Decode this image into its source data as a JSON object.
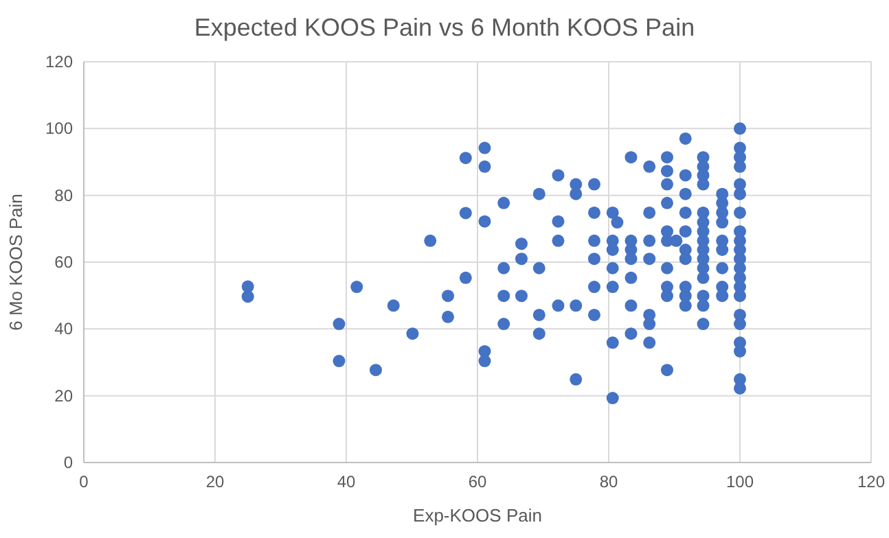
{
  "chart_data": {
    "type": "scatter",
    "title": "Expected KOOS Pain vs 6 Month KOOS Pain",
    "xlabel": "Exp-KOOS Pain",
    "ylabel": "6 Mo KOOS Pain",
    "xlim": [
      0,
      120
    ],
    "xticks": [
      0,
      20,
      40,
      60,
      80,
      100,
      120
    ],
    "ylim": [
      0,
      120
    ],
    "yticks": [
      0,
      20,
      40,
      60,
      80,
      100,
      120
    ],
    "grid": true,
    "marker": "circle",
    "series": [
      {
        "color": "#4472c4",
        "x": [
          25,
          25,
          38.9,
          38.9,
          41.6,
          44.5,
          47.2,
          50.1,
          52.8,
          55.5,
          55.5,
          58.2,
          58.2,
          58.2,
          61.1,
          61.1,
          61.1,
          61.1,
          61.1,
          64,
          64,
          64,
          64,
          66.7,
          66.7,
          66.7,
          69.4,
          69.4,
          69.4,
          69.4,
          72.3,
          72.3,
          72.3,
          72.3,
          75,
          75,
          75,
          75,
          77.8,
          77.8,
          77.8,
          77.8,
          77.8,
          77.8,
          80.6,
          80.6,
          80.6,
          80.6,
          80.6,
          80.6,
          80.6,
          81.3,
          83.4,
          83.4,
          83.4,
          83.4,
          83.4,
          83.4,
          83.4,
          86.2,
          86.2,
          86.2,
          86.2,
          86.2,
          86.2,
          86.2,
          88.9,
          88.9,
          88.9,
          88.9,
          88.9,
          88.9,
          88.9,
          88.9,
          88.9,
          88.9,
          90.3,
          91.7,
          91.7,
          91.7,
          91.7,
          91.7,
          91.7,
          91.7,
          91.7,
          91.7,
          91.7,
          94.4,
          94.4,
          94.4,
          94.4,
          94.4,
          94.4,
          94.4,
          94.4,
          94.4,
          94.4,
          94.4,
          94.4,
          94.4,
          94.4,
          94.4,
          97.3,
          97.3,
          97.3,
          97.3,
          97.3,
          97.3,
          97.3,
          97.3,
          97.3,
          100,
          100,
          100,
          100,
          100,
          100,
          100,
          100,
          100,
          100,
          100,
          100,
          100,
          100,
          100,
          100,
          100,
          100,
          100,
          100,
          100
        ],
        "values": [
          52.7,
          49.7,
          41.5,
          30.4,
          52.6,
          27.7,
          47,
          38.6,
          66.4,
          49.9,
          43.6,
          91.2,
          74.7,
          55.3,
          94.2,
          88.6,
          72.2,
          33.3,
          30.4,
          77.7,
          58.2,
          49.9,
          41.5,
          65.5,
          61,
          49.9,
          80.4,
          58.2,
          44.2,
          38.6,
          86,
          72.2,
          66.4,
          47,
          83.3,
          80.4,
          47,
          24.9,
          83.3,
          74.8,
          66.4,
          61,
          52.6,
          44.2,
          74.8,
          66.4,
          63.7,
          58.2,
          52.6,
          35.9,
          19.3,
          71.9,
          91.4,
          66.4,
          63.7,
          61,
          55.3,
          47,
          38.6,
          88.6,
          74.8,
          66.4,
          61,
          44.2,
          41.5,
          35.9,
          91.4,
          87.3,
          83.3,
          77.7,
          69.2,
          66.4,
          58.2,
          52.6,
          49.9,
          27.7,
          66.4,
          97,
          86,
          80.4,
          74.8,
          69.2,
          63.7,
          61,
          52.6,
          49.9,
          47,
          91.4,
          88.6,
          86,
          83.3,
          74.8,
          71.9,
          69.2,
          66.4,
          63.7,
          61,
          58.2,
          55.3,
          49.9,
          47,
          41.5,
          80.4,
          77.7,
          74.8,
          71.9,
          66.4,
          63.7,
          58.2,
          52.6,
          49.9,
          100,
          94.2,
          91.4,
          88.6,
          83.3,
          80.4,
          74.8,
          69.2,
          66.4,
          63.7,
          61,
          58.2,
          55.3,
          52.6,
          49.9,
          44.2,
          41.5,
          35.9,
          33.3,
          24.9,
          22.2
        ]
      }
    ]
  }
}
